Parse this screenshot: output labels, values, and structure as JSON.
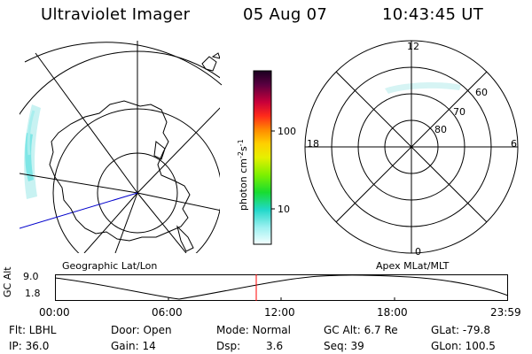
{
  "header": {
    "instrument": "Ultraviolet Imager",
    "date": "05 Aug 07",
    "time": "10:43:45 UT"
  },
  "colorbar": {
    "unit_main": "photon cm",
    "unit_sup1": "-2",
    "unit_mid": "s",
    "unit_sup2": "-1",
    "tick_100": "100",
    "tick_10": "10"
  },
  "left_panel": {
    "caption": "Geographic Lat/Lon"
  },
  "right_panel": {
    "caption": "Apex MLat/MLT",
    "mlt_12": "12",
    "mlt_18": "18",
    "mlt_6": "6",
    "mlt_0": "0",
    "lat_60": "60",
    "lat_70": "70",
    "lat_80": "80"
  },
  "altitude_plot": {
    "label": "GC Alt",
    "y_top": "9.0",
    "y_bottom": "1.8",
    "times": [
      "00:00",
      "06:00",
      "12:00",
      "18:00",
      "23:59"
    ],
    "cursor_color": "#ff0000"
  },
  "info": {
    "filter": "Flt: LBHL",
    "ip": "IP: 36.0",
    "door": "Door: Open",
    "gain": "Gain: 14",
    "mode": "Mode: Normal",
    "dsp_label": "Dsp:",
    "dsp_value": "3.6",
    "gc_alt": "GC Alt: 6.7 Re",
    "seq": "Seq: 39",
    "glat": "GLat: -79.8",
    "glon": "GLon: 100.5"
  }
}
